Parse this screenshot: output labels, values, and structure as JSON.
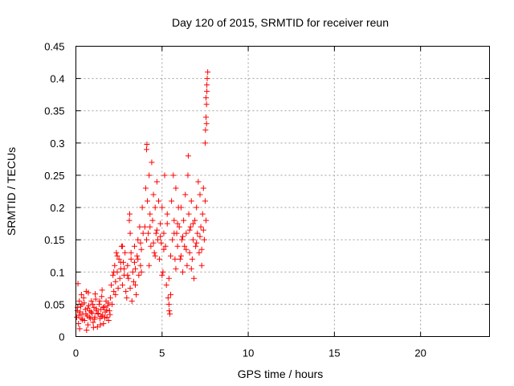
{
  "chart_data": {
    "type": "scatter",
    "title": "Day 120 of 2015, SRMTID for receiver reun",
    "xlabel": "GPS time / hours",
    "ylabel": "SRMTID / TECUs",
    "xlim": [
      0,
      24
    ],
    "ylim": [
      0,
      0.45
    ],
    "x_ticks": [
      0,
      5,
      10,
      15,
      20
    ],
    "x_tick_labels": [
      "0",
      "5",
      "10",
      "15",
      "20"
    ],
    "y_ticks": [
      0,
      0.05,
      0.1,
      0.15,
      0.2,
      0.25,
      0.3,
      0.35,
      0.4,
      0.45
    ],
    "y_tick_labels": [
      "0",
      "0.05",
      "0.1",
      "0.15",
      "0.2",
      "0.25",
      "0.3",
      "0.35",
      "0.4",
      "0.45"
    ],
    "grid": true,
    "marker": "+",
    "color": "#ff0000",
    "series": [
      {
        "name": "SRMTID",
        "points": [
          [
            0.05,
            0.03
          ],
          [
            0.1,
            0.045
          ],
          [
            0.12,
            0.082
          ],
          [
            0.15,
            0.02
          ],
          [
            0.2,
            0.055
          ],
          [
            0.25,
            0.038
          ],
          [
            0.3,
            0.028
          ],
          [
            0.35,
            0.05
          ],
          [
            0.4,
            0.035
          ],
          [
            0.45,
            0.06
          ],
          [
            0.5,
            0.025
          ],
          [
            0.55,
            0.042
          ],
          [
            0.6,
            0.07
          ],
          [
            0.65,
            0.032
          ],
          [
            0.7,
            0.018
          ],
          [
            0.75,
            0.048
          ],
          [
            0.8,
            0.04
          ],
          [
            0.85,
            0.028
          ],
          [
            0.9,
            0.055
          ],
          [
            0.95,
            0.036
          ],
          [
            1.0,
            0.022
          ],
          [
            1.05,
            0.045
          ],
          [
            1.1,
            0.03
          ],
          [
            1.15,
            0.058
          ],
          [
            1.2,
            0.04
          ],
          [
            1.25,
            0.015
          ],
          [
            1.3,
            0.035
          ],
          [
            1.35,
            0.05
          ],
          [
            1.4,
            0.028
          ],
          [
            1.45,
            0.042
          ],
          [
            1.5,
            0.062
          ],
          [
            1.55,
            0.033
          ],
          [
            1.6,
            0.02
          ],
          [
            1.65,
            0.046
          ],
          [
            1.7,
            0.038
          ],
          [
            1.75,
            0.055
          ],
          [
            1.8,
            0.03
          ],
          [
            1.85,
            0.048
          ],
          [
            1.9,
            0.025
          ],
          [
            1.95,
            0.04
          ],
          [
            0.08,
            0.04
          ],
          [
            0.18,
            0.033
          ],
          [
            0.28,
            0.047
          ],
          [
            0.38,
            0.026
          ],
          [
            0.48,
            0.052
          ],
          [
            0.58,
            0.035
          ],
          [
            0.68,
            0.044
          ],
          [
            0.78,
            0.03
          ],
          [
            0.88,
            0.038
          ],
          [
            0.98,
            0.05
          ],
          [
            1.08,
            0.027
          ],
          [
            1.18,
            0.043
          ],
          [
            1.28,
            0.036
          ],
          [
            1.38,
            0.055
          ],
          [
            1.48,
            0.031
          ],
          [
            1.58,
            0.045
          ],
          [
            1.68,
            0.029
          ],
          [
            1.78,
            0.041
          ],
          [
            1.88,
            0.052
          ],
          [
            1.98,
            0.034
          ],
          [
            0.22,
            0.012
          ],
          [
            0.62,
            0.01
          ],
          [
            1.02,
            0.014
          ],
          [
            1.42,
            0.018
          ],
          [
            0.32,
            0.065
          ],
          [
            0.72,
            0.068
          ],
          [
            1.52,
            0.072
          ],
          [
            1.12,
            0.066
          ],
          [
            2.0,
            0.06
          ],
          [
            2.05,
            0.08
          ],
          [
            2.1,
            0.05
          ],
          [
            2.15,
            0.095
          ],
          [
            2.2,
            0.07
          ],
          [
            2.25,
            0.11
          ],
          [
            2.3,
            0.085
          ],
          [
            2.35,
            0.13
          ],
          [
            2.4,
            0.1
          ],
          [
            2.45,
            0.075
          ],
          [
            2.5,
            0.12
          ],
          [
            2.55,
            0.09
          ],
          [
            2.6,
            0.105
          ],
          [
            2.65,
            0.14
          ],
          [
            2.7,
            0.08
          ],
          [
            2.75,
            0.115
          ],
          [
            2.8,
            0.095
          ],
          [
            2.85,
            0.13
          ],
          [
            2.9,
            0.07
          ],
          [
            2.95,
            0.06
          ],
          [
            3.0,
            0.11
          ],
          [
            3.05,
            0.09
          ],
          [
            3.1,
            0.18
          ],
          [
            3.12,
            0.19
          ],
          [
            3.15,
            0.075
          ],
          [
            3.2,
            0.12
          ],
          [
            3.25,
            0.055
          ],
          [
            3.3,
            0.1
          ],
          [
            3.35,
            0.085
          ],
          [
            3.4,
            0.14
          ],
          [
            3.45,
            0.105
          ],
          [
            3.5,
            0.065
          ],
          [
            3.55,
            0.125
          ],
          [
            3.6,
            0.15
          ],
          [
            3.65,
            0.095
          ],
          [
            3.7,
            0.17
          ],
          [
            3.75,
            0.11
          ],
          [
            3.8,
            0.135
          ],
          [
            3.85,
            0.2
          ],
          [
            3.9,
            0.16
          ],
          [
            2.2,
            0.1
          ],
          [
            2.4,
            0.125
          ],
          [
            2.6,
            0.115
          ],
          [
            2.8,
            0.105
          ],
          [
            3.0,
            0.095
          ],
          [
            3.2,
            0.13
          ],
          [
            3.4,
            0.115
          ],
          [
            3.6,
            0.12
          ],
          [
            3.8,
            0.1
          ],
          [
            2.3,
            0.065
          ],
          [
            2.7,
            0.14
          ],
          [
            3.15,
            0.16
          ],
          [
            3.45,
            0.08
          ],
          [
            3.75,
            0.145
          ],
          [
            4.0,
            0.17
          ],
          [
            4.05,
            0.23
          ],
          [
            4.1,
            0.29
          ],
          [
            4.12,
            0.298
          ],
          [
            4.15,
            0.21
          ],
          [
            4.2,
            0.16
          ],
          [
            4.25,
            0.25
          ],
          [
            4.3,
            0.19
          ],
          [
            4.35,
            0.14
          ],
          [
            4.4,
            0.27
          ],
          [
            4.45,
            0.18
          ],
          [
            4.5,
            0.22
          ],
          [
            4.55,
            0.13
          ],
          [
            4.6,
            0.2
          ],
          [
            4.65,
            0.16
          ],
          [
            4.7,
            0.24
          ],
          [
            4.75,
            0.15
          ],
          [
            4.8,
            0.21
          ],
          [
            4.85,
            0.12
          ],
          [
            4.9,
            0.175
          ],
          [
            4.95,
            0.145
          ],
          [
            5.0,
            0.2
          ],
          [
            5.05,
            0.1
          ],
          [
            5.1,
            0.16
          ],
          [
            5.15,
            0.25
          ],
          [
            5.2,
            0.14
          ],
          [
            5.25,
            0.08
          ],
          [
            5.3,
            0.19
          ],
          [
            5.35,
            0.06
          ],
          [
            5.4,
            0.05
          ],
          [
            5.42,
            0.04
          ],
          [
            5.45,
            0.035
          ],
          [
            5.5,
            0.065
          ],
          [
            5.55,
            0.21
          ],
          [
            5.6,
            0.15
          ],
          [
            5.65,
            0.25
          ],
          [
            5.7,
            0.18
          ],
          [
            5.75,
            0.12
          ],
          [
            5.8,
            0.23
          ],
          [
            5.85,
            0.16
          ],
          [
            5.9,
            0.14
          ],
          [
            5.95,
            0.2
          ],
          [
            4.1,
            0.15
          ],
          [
            4.3,
            0.17
          ],
          [
            4.5,
            0.145
          ],
          [
            4.7,
            0.165
          ],
          [
            4.9,
            0.155
          ],
          [
            5.1,
            0.135
          ],
          [
            5.3,
            0.175
          ],
          [
            5.5,
            0.125
          ],
          [
            5.7,
            0.16
          ],
          [
            5.9,
            0.175
          ],
          [
            4.25,
            0.11
          ],
          [
            4.6,
            0.125
          ],
          [
            5.0,
            0.095
          ],
          [
            5.4,
            0.09
          ],
          [
            5.8,
            0.105
          ],
          [
            6.0,
            0.17
          ],
          [
            6.05,
            0.12
          ],
          [
            6.1,
            0.2
          ],
          [
            6.15,
            0.15
          ],
          [
            6.2,
            0.1
          ],
          [
            6.25,
            0.18
          ],
          [
            6.3,
            0.14
          ],
          [
            6.35,
            0.22
          ],
          [
            6.4,
            0.16
          ],
          [
            6.45,
            0.11
          ],
          [
            6.5,
            0.25
          ],
          [
            6.52,
            0.28
          ],
          [
            6.55,
            0.19
          ],
          [
            6.6,
            0.13
          ],
          [
            6.65,
            0.17
          ],
          [
            6.7,
            0.21
          ],
          [
            6.75,
            0.12
          ],
          [
            6.8,
            0.15
          ],
          [
            6.85,
            0.09
          ],
          [
            6.9,
            0.18
          ],
          [
            6.95,
            0.14
          ],
          [
            7.0,
            0.2
          ],
          [
            7.05,
            0.16
          ],
          [
            7.1,
            0.24
          ],
          [
            7.15,
            0.13
          ],
          [
            7.2,
            0.22
          ],
          [
            7.25,
            0.17
          ],
          [
            7.3,
            0.11
          ],
          [
            7.35,
            0.19
          ],
          [
            7.4,
            0.23
          ],
          [
            7.45,
            0.15
          ],
          [
            7.5,
            0.21
          ],
          [
            7.55,
            0.18
          ],
          [
            6.2,
            0.155
          ],
          [
            6.4,
            0.135
          ],
          [
            6.6,
            0.165
          ],
          [
            6.8,
            0.175
          ],
          [
            7.0,
            0.145
          ],
          [
            7.2,
            0.155
          ],
          [
            7.4,
            0.165
          ],
          [
            6.1,
            0.125
          ],
          [
            6.7,
            0.105
          ],
          [
            7.3,
            0.135
          ],
          [
            7.5,
            0.3
          ],
          [
            7.52,
            0.32
          ],
          [
            7.55,
            0.34
          ],
          [
            7.58,
            0.36
          ],
          [
            7.6,
            0.38
          ],
          [
            7.62,
            0.4
          ],
          [
            7.65,
            0.41
          ],
          [
            7.55,
            0.37
          ],
          [
            7.6,
            0.39
          ],
          [
            7.58,
            0.33
          ]
        ]
      }
    ]
  }
}
